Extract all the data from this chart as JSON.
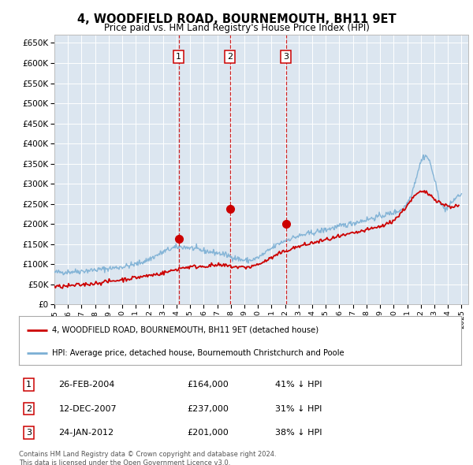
{
  "title": "4, WOODFIELD ROAD, BOURNEMOUTH, BH11 9ET",
  "subtitle": "Price paid vs. HM Land Registry's House Price Index (HPI)",
  "ylim": [
    0,
    670000
  ],
  "yticks": [
    0,
    50000,
    100000,
    150000,
    200000,
    250000,
    300000,
    350000,
    400000,
    450000,
    500000,
    550000,
    600000,
    650000
  ],
  "background_color": "#ffffff",
  "plot_bg_color": "#dce6f0",
  "grid_color": "#ffffff",
  "sale_years": [
    2004.15,
    2007.94,
    2012.06
  ],
  "sale_prices": [
    164000,
    237000,
    201000
  ],
  "sale_labels": [
    "1",
    "2",
    "3"
  ],
  "legend_red": "4, WOODFIELD ROAD, BOURNEMOUTH, BH11 9ET (detached house)",
  "legend_blue": "HPI: Average price, detached house, Bournemouth Christchurch and Poole",
  "table_rows": [
    [
      "1",
      "26-FEB-2004",
      "£164,000",
      "41% ↓ HPI"
    ],
    [
      "2",
      "12-DEC-2007",
      "£237,000",
      "31% ↓ HPI"
    ],
    [
      "3",
      "24-JAN-2012",
      "£201,000",
      "38% ↓ HPI"
    ]
  ],
  "footnote": "Contains HM Land Registry data © Crown copyright and database right 2024.\nThis data is licensed under the Open Government Licence v3.0.",
  "red_color": "#cc0000",
  "blue_color": "#7bafd4",
  "dashed_color": "#cc0000",
  "xlim": [
    1995,
    2025.5
  ],
  "xticks": [
    1995,
    1996,
    1997,
    1998,
    1999,
    2000,
    2001,
    2002,
    2003,
    2004,
    2005,
    2006,
    2007,
    2008,
    2009,
    2010,
    2011,
    2012,
    2013,
    2014,
    2015,
    2016,
    2017,
    2018,
    2019,
    2020,
    2021,
    2022,
    2023,
    2024,
    2025
  ]
}
